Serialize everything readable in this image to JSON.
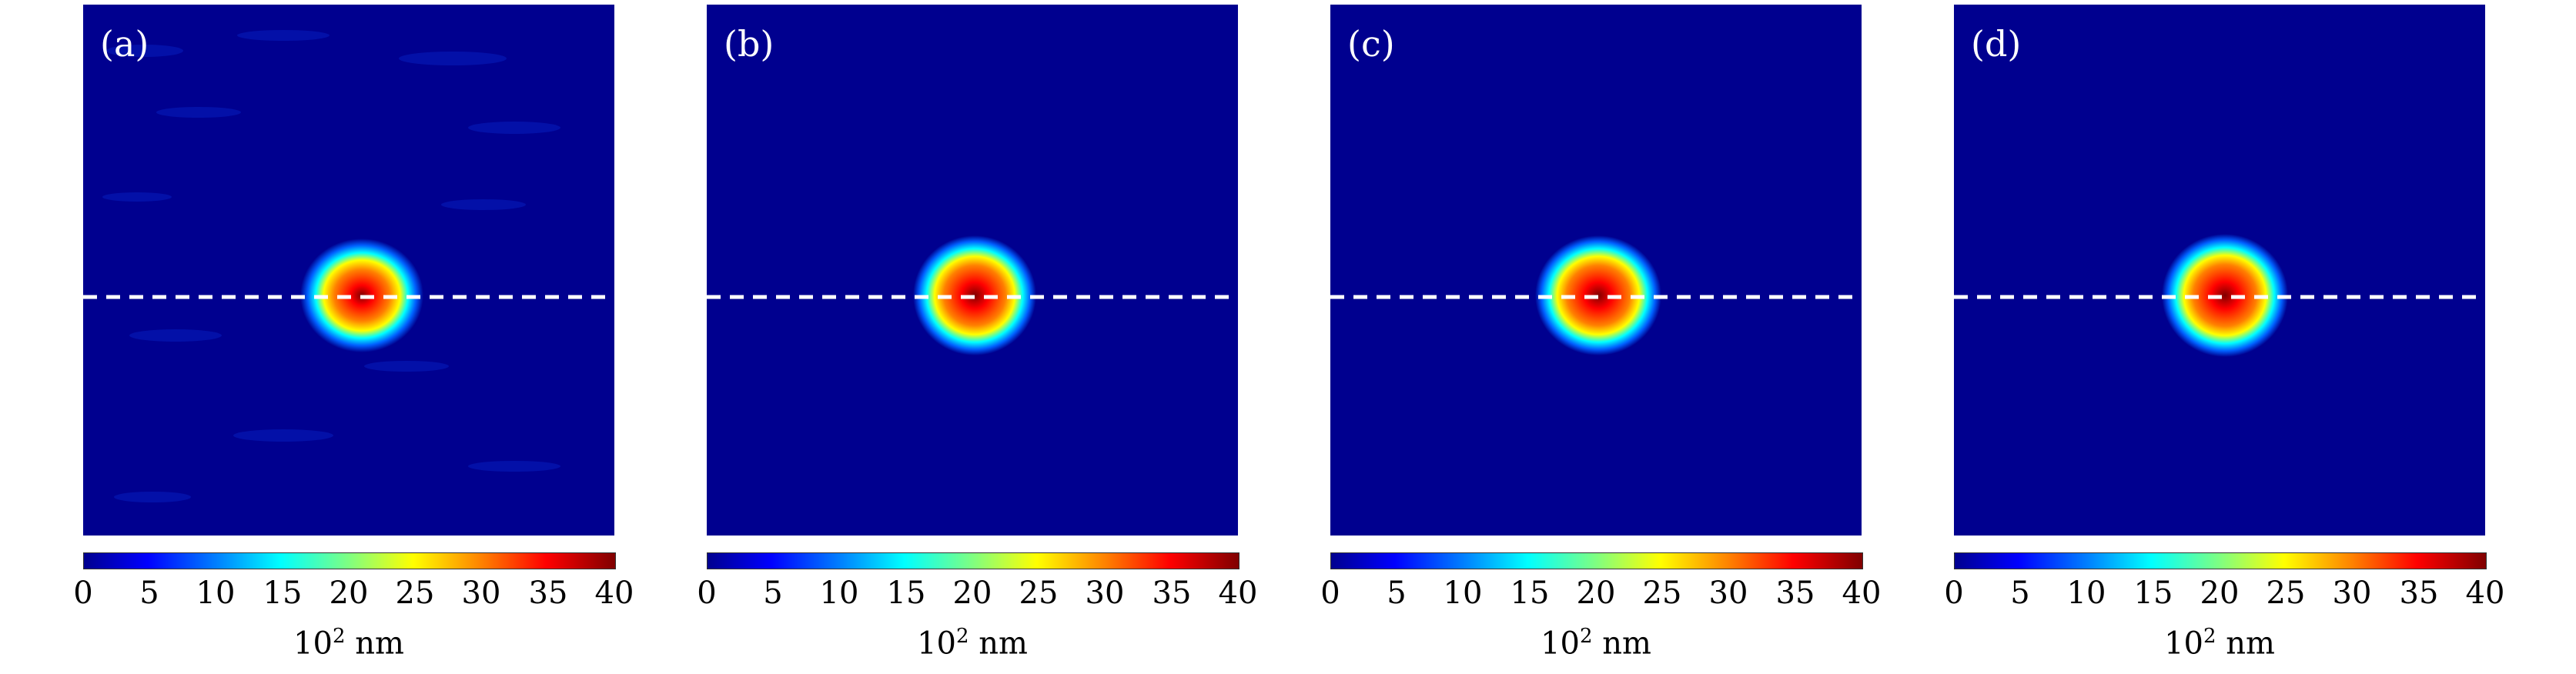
{
  "panels": [
    {
      "label": "(a)",
      "id": "a"
    },
    {
      "label": "(b)",
      "id": "b"
    },
    {
      "label": "(c)",
      "id": "c"
    },
    {
      "label": "(d)",
      "id": "d"
    }
  ],
  "colorbar": {
    "ticks": [
      "0",
      "5",
      "10",
      "15",
      "20",
      "25",
      "30",
      "35",
      "40"
    ],
    "unit_base": "10",
    "unit_exp": "2",
    "unit_text": " nm",
    "colormap": [
      "#00008f",
      "#0000ff",
      "#0080ff",
      "#00ffff",
      "#80ff80",
      "#ffff00",
      "#ff8000",
      "#ff0000",
      "#800000"
    ]
  }
}
